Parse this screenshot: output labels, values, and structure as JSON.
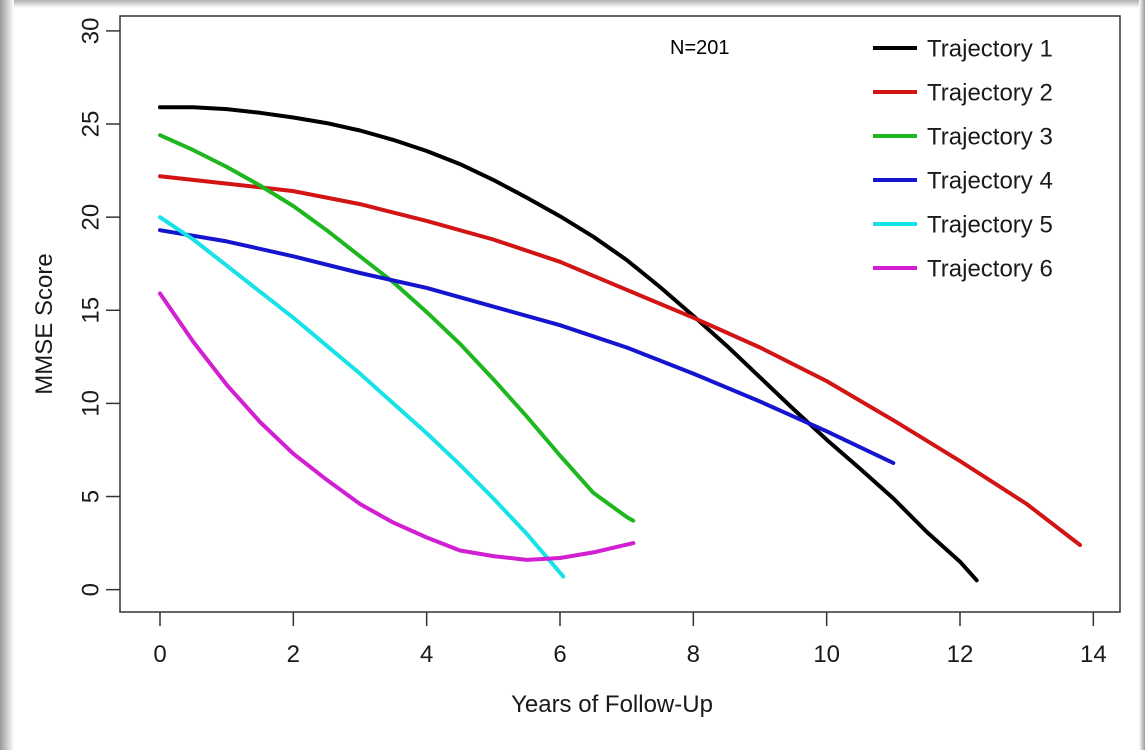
{
  "chart_data": {
    "type": "line",
    "title": "",
    "annotation": "N=201",
    "xlabel": "Years of Follow-Up",
    "ylabel": "MMSE Score",
    "xlim": [
      -0.6,
      14.4
    ],
    "ylim": [
      -1.2,
      30.8
    ],
    "xticks": [
      0,
      2,
      4,
      6,
      8,
      10,
      12,
      14
    ],
    "yticks": [
      0,
      5,
      10,
      15,
      20,
      25,
      30
    ],
    "grid": false,
    "legend_position": "top-right",
    "series": [
      {
        "name": "Trajectory 1",
        "color": "#000000",
        "x": [
          0,
          0.5,
          1,
          1.5,
          2,
          2.5,
          3,
          3.5,
          4,
          4.5,
          5,
          5.5,
          6,
          6.5,
          7,
          7.5,
          8,
          8.5,
          9,
          9.5,
          10,
          10.5,
          11,
          11.5,
          12,
          12.25
        ],
        "y": [
          25.9,
          25.9,
          25.8,
          25.6,
          25.35,
          25.05,
          24.65,
          24.15,
          23.55,
          22.85,
          22.0,
          21.05,
          20.05,
          18.95,
          17.7,
          16.25,
          14.7,
          13.1,
          11.4,
          9.7,
          8.05,
          6.5,
          4.9,
          3.1,
          1.5,
          0.5
        ]
      },
      {
        "name": "Trajectory 2",
        "color": "#d21414",
        "x": [
          0,
          1,
          2,
          3,
          4,
          5,
          6,
          7,
          8,
          9,
          10,
          11,
          12,
          13,
          13.8
        ],
        "y": [
          22.2,
          21.8,
          21.4,
          20.7,
          19.8,
          18.8,
          17.6,
          16.1,
          14.6,
          13.0,
          11.2,
          9.1,
          6.9,
          4.6,
          2.4
        ]
      },
      {
        "name": "Trajectory 3",
        "color": "#1fb71f",
        "x": [
          0,
          0.5,
          1,
          1.5,
          2,
          2.5,
          3,
          3.5,
          4,
          4.5,
          5,
          5.5,
          6,
          6.5,
          7,
          7.1
        ],
        "y": [
          24.4,
          23.6,
          22.7,
          21.7,
          20.6,
          19.3,
          17.9,
          16.5,
          14.9,
          13.2,
          11.3,
          9.3,
          7.2,
          5.2,
          3.9,
          3.7
        ]
      },
      {
        "name": "Trajectory 4",
        "color": "#1515d0",
        "x": [
          0,
          1,
          2,
          3,
          4,
          5,
          6,
          7,
          8,
          9,
          10,
          11
        ],
        "y": [
          19.3,
          18.7,
          17.9,
          17.0,
          16.2,
          15.2,
          14.2,
          13.0,
          11.6,
          10.1,
          8.5,
          6.8
        ]
      },
      {
        "name": "Trajectory 5",
        "color": "#17e2e8",
        "x": [
          0,
          0.5,
          1,
          1.5,
          2,
          2.5,
          3,
          3.5,
          4,
          4.5,
          5,
          5.5,
          6.05
        ],
        "y": [
          20.0,
          18.8,
          17.4,
          16.0,
          14.6,
          13.1,
          11.6,
          10.0,
          8.4,
          6.7,
          4.9,
          3.0,
          0.7
        ]
      },
      {
        "name": "Trajectory 6",
        "color": "#d21fd2",
        "x": [
          0,
          0.25,
          0.5,
          1,
          1.5,
          2,
          2.5,
          3,
          3.5,
          4,
          4.5,
          5,
          5.5,
          6,
          6.5,
          7.1
        ],
        "y": [
          15.9,
          14.6,
          13.3,
          11.0,
          9.0,
          7.3,
          5.9,
          4.6,
          3.6,
          2.8,
          2.1,
          1.8,
          1.6,
          1.7,
          2.0,
          2.5
        ]
      }
    ]
  }
}
